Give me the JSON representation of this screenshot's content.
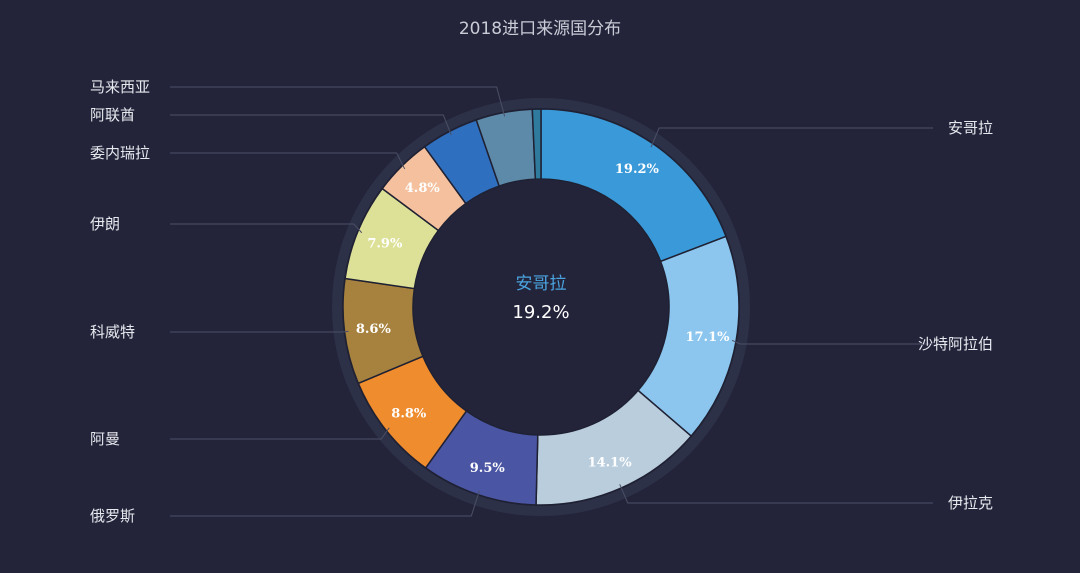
{
  "chart_data": {
    "type": "pie",
    "variant": "donut",
    "title": "2018进口来源国分布",
    "center": {
      "name": "安哥拉",
      "value": "19.2%"
    },
    "slices": [
      {
        "name": "安哥拉",
        "value": 19.2,
        "label": "19.2%",
        "color": "#3a9ad9"
      },
      {
        "name": "沙特阿拉伯",
        "value": 17.1,
        "label": "17.1%",
        "color": "#8cc6ee"
      },
      {
        "name": "伊拉克",
        "value": 14.1,
        "label": "14.1%",
        "color": "#b9cddd"
      },
      {
        "name": "俄罗斯",
        "value": 9.5,
        "label": "9.5%",
        "color": "#4a55a3"
      },
      {
        "name": "阿曼",
        "value": 8.8,
        "label": "8.8%",
        "color": "#ee8c2e"
      },
      {
        "name": "科威特",
        "value": 8.6,
        "label": "8.6%",
        "color": "#a7823e"
      },
      {
        "name": "伊朗",
        "value": 7.9,
        "label": "7.9%",
        "color": "#dde198"
      },
      {
        "name": "委内瑞拉",
        "value": 4.8,
        "label": "4.8%",
        "color": "#f4c09d"
      },
      {
        "name": "阿联酋",
        "value": 4.7,
        "label": "",
        "color": "#2f6fbf"
      },
      {
        "name": "马来西亚",
        "value": 4.6,
        "label": "",
        "color": "#5e8aaa"
      },
      {
        "name": "",
        "value": 0.7,
        "label": "",
        "color": "#2e7b9e"
      }
    ],
    "legend": "none"
  }
}
